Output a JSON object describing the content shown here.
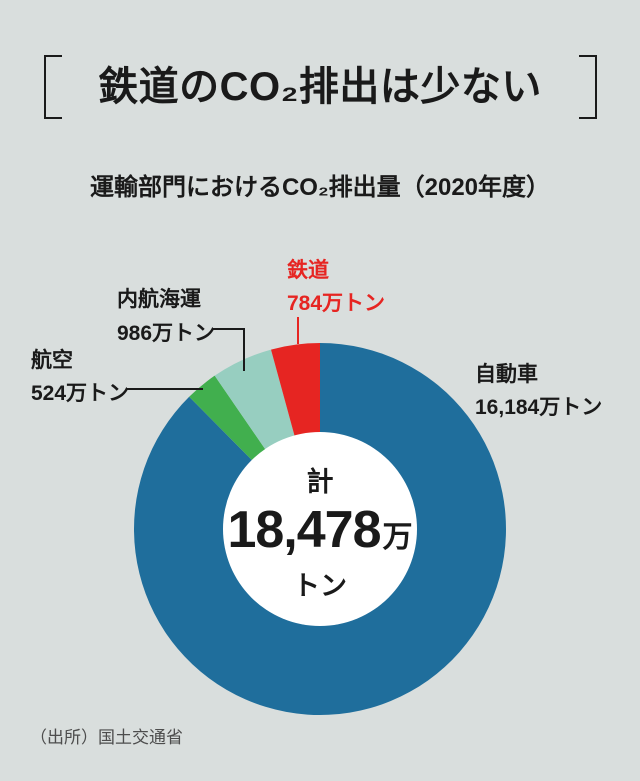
{
  "page": {
    "background": "#D9DEDD",
    "title": "鉄道のCO₂排出は少ない",
    "subtitle": "運輸部門におけるCO₂排出量（2020年度）",
    "source": "（出所）国土交通省"
  },
  "chart_data": {
    "type": "pie",
    "subtype": "donut",
    "title": "運輸部門におけるCO₂排出量（2020年度）",
    "unit": "万トン",
    "total": 18478,
    "start_angle_deg": 0,
    "direction": "clockwise",
    "legend_position": "callout-labels",
    "categories": [
      "自動車",
      "航空",
      "内航海運",
      "鉄道"
    ],
    "values": [
      16184,
      524,
      986,
      784
    ],
    "colors": [
      "#1F6E9C",
      "#41AF4E",
      "#97CEC0",
      "#E62522"
    ],
    "labels": [
      {
        "name": "自動車",
        "value_label": "16,184万トン",
        "color": "#1A1A1A"
      },
      {
        "name": "航空",
        "value_label": "524万トン",
        "color": "#1A1A1A"
      },
      {
        "name": "内航海運",
        "value_label": "986万トン",
        "color": "#1A1A1A"
      },
      {
        "name": "鉄道",
        "value_label": "784万トン",
        "color": "#E62522"
      }
    ],
    "center": {
      "prefix": "計",
      "value": "18,478",
      "value_suffix": "万",
      "unit": "トン"
    }
  }
}
